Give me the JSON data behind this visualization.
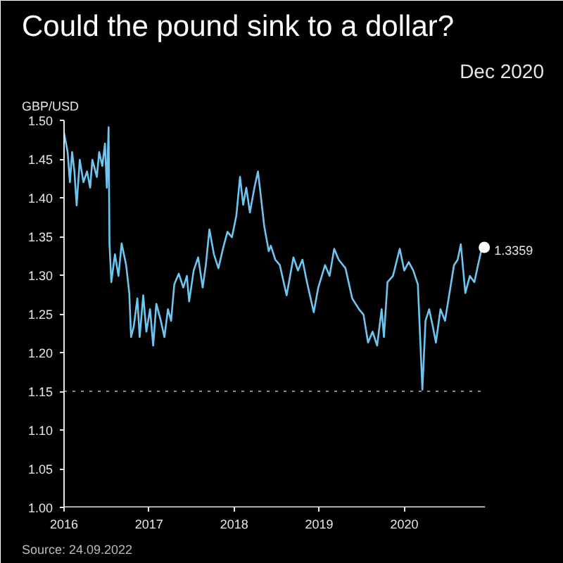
{
  "chart_data": {
    "type": "line",
    "title": "Could the pound sink to a dollar?",
    "subtitle": "Dec 2020",
    "ylabel": "GBP/USD",
    "annotations": [
      {
        "text": "1.3359",
        "x": 2020.941,
        "y": 1.3359
      },
      "Source: 24.09.2022"
    ],
    "xlim": [
      2016,
      2020.95
    ],
    "xticks": [
      2016,
      2017,
      2018,
      2019,
      2020
    ],
    "ylim": [
      1.0,
      1.5
    ],
    "yticks": [
      {
        "value": 1.0,
        "label": "1.00"
      },
      {
        "value": 1.05,
        "label": "1.05"
      },
      {
        "value": 1.1,
        "label": "1.10"
      },
      {
        "value": 1.15,
        "label": "1.15"
      },
      {
        "value": 1.2,
        "label": "1.20"
      },
      {
        "value": 1.25,
        "label": "1.25"
      },
      {
        "value": 1.3,
        "label": "1.30"
      },
      {
        "value": 1.35,
        "label": "1.35"
      },
      {
        "value": 1.4,
        "label": "1.40"
      },
      {
        "value": 1.45,
        "label": "1.45"
      },
      {
        "value": 1.5,
        "label": "1.50"
      }
    ],
    "ref_lines": [
      {
        "axis": "y",
        "value": 1.15,
        "color": "#8a8a8a",
        "line_style": "dotted"
      }
    ],
    "grid": false,
    "line_style": "solid",
    "series": [
      {
        "color": "#6ec6f0",
        "x": [
          2016.0,
          2016.042,
          2016.069,
          2016.095,
          2016.122,
          2016.148,
          2016.185,
          2016.228,
          2016.27,
          2016.307,
          2016.333,
          2016.386,
          2016.413,
          2016.45,
          2016.481,
          2016.503,
          2016.524,
          2016.534,
          2016.556,
          2016.598,
          2016.64,
          2016.677,
          2016.73,
          2016.767,
          2016.788,
          2016.82,
          2016.862,
          2016.889,
          2016.931,
          2016.968,
          2017.011,
          2017.048,
          2017.085,
          2017.138,
          2017.18,
          2017.222,
          2017.259,
          2017.296,
          2017.349,
          2017.402,
          2017.444,
          2017.471,
          2017.524,
          2017.577,
          2017.63,
          2017.667,
          2017.709,
          2017.762,
          2017.815,
          2017.868,
          2017.921,
          2017.974,
          2018.026,
          2018.069,
          2018.106,
          2018.143,
          2018.185,
          2018.238,
          2018.28,
          2018.317,
          2018.354,
          2018.407,
          2018.431,
          2018.484,
          2018.537,
          2018.617,
          2018.697,
          2018.75,
          2018.803,
          2018.856,
          2018.936,
          2018.989,
          2019.069,
          2019.122,
          2019.176,
          2019.229,
          2019.309,
          2019.388,
          2019.468,
          2019.521,
          2019.574,
          2019.628,
          2019.681,
          2019.734,
          2019.761,
          2019.803,
          2019.867,
          2019.947,
          2020.0,
          2020.053,
          2020.106,
          2020.16,
          2020.213,
          2020.25,
          2020.293,
          2020.335,
          2020.372,
          2020.426,
          2020.479,
          2020.532,
          2020.585,
          2020.628,
          2020.665,
          2020.718,
          2020.771,
          2020.824,
          2020.867,
          2020.904,
          2020.941
        ],
        "values": [
          1.484,
          1.459,
          1.42,
          1.459,
          1.434,
          1.39,
          1.449,
          1.42,
          1.434,
          1.413,
          1.449,
          1.427,
          1.459,
          1.441,
          1.47,
          1.413,
          1.491,
          1.341,
          1.291,
          1.327,
          1.299,
          1.341,
          1.313,
          1.277,
          1.22,
          1.234,
          1.27,
          1.22,
          1.274,
          1.227,
          1.256,
          1.209,
          1.263,
          1.241,
          1.22,
          1.256,
          1.241,
          1.288,
          1.302,
          1.284,
          1.299,
          1.266,
          1.306,
          1.323,
          1.284,
          1.313,
          1.359,
          1.327,
          1.309,
          1.334,
          1.356,
          1.349,
          1.377,
          1.427,
          1.391,
          1.413,
          1.381,
          1.413,
          1.434,
          1.399,
          1.363,
          1.331,
          1.338,
          1.32,
          1.313,
          1.274,
          1.323,
          1.306,
          1.32,
          1.291,
          1.252,
          1.284,
          1.313,
          1.299,
          1.334,
          1.32,
          1.309,
          1.27,
          1.256,
          1.249,
          1.213,
          1.227,
          1.209,
          1.256,
          1.22,
          1.291,
          1.299,
          1.334,
          1.306,
          1.317,
          1.306,
          1.288,
          1.152,
          1.241,
          1.256,
          1.234,
          1.213,
          1.256,
          1.241,
          1.277,
          1.313,
          1.32,
          1.34,
          1.277,
          1.299,
          1.291,
          1.313,
          1.331,
          1.3359
        ]
      }
    ]
  }
}
